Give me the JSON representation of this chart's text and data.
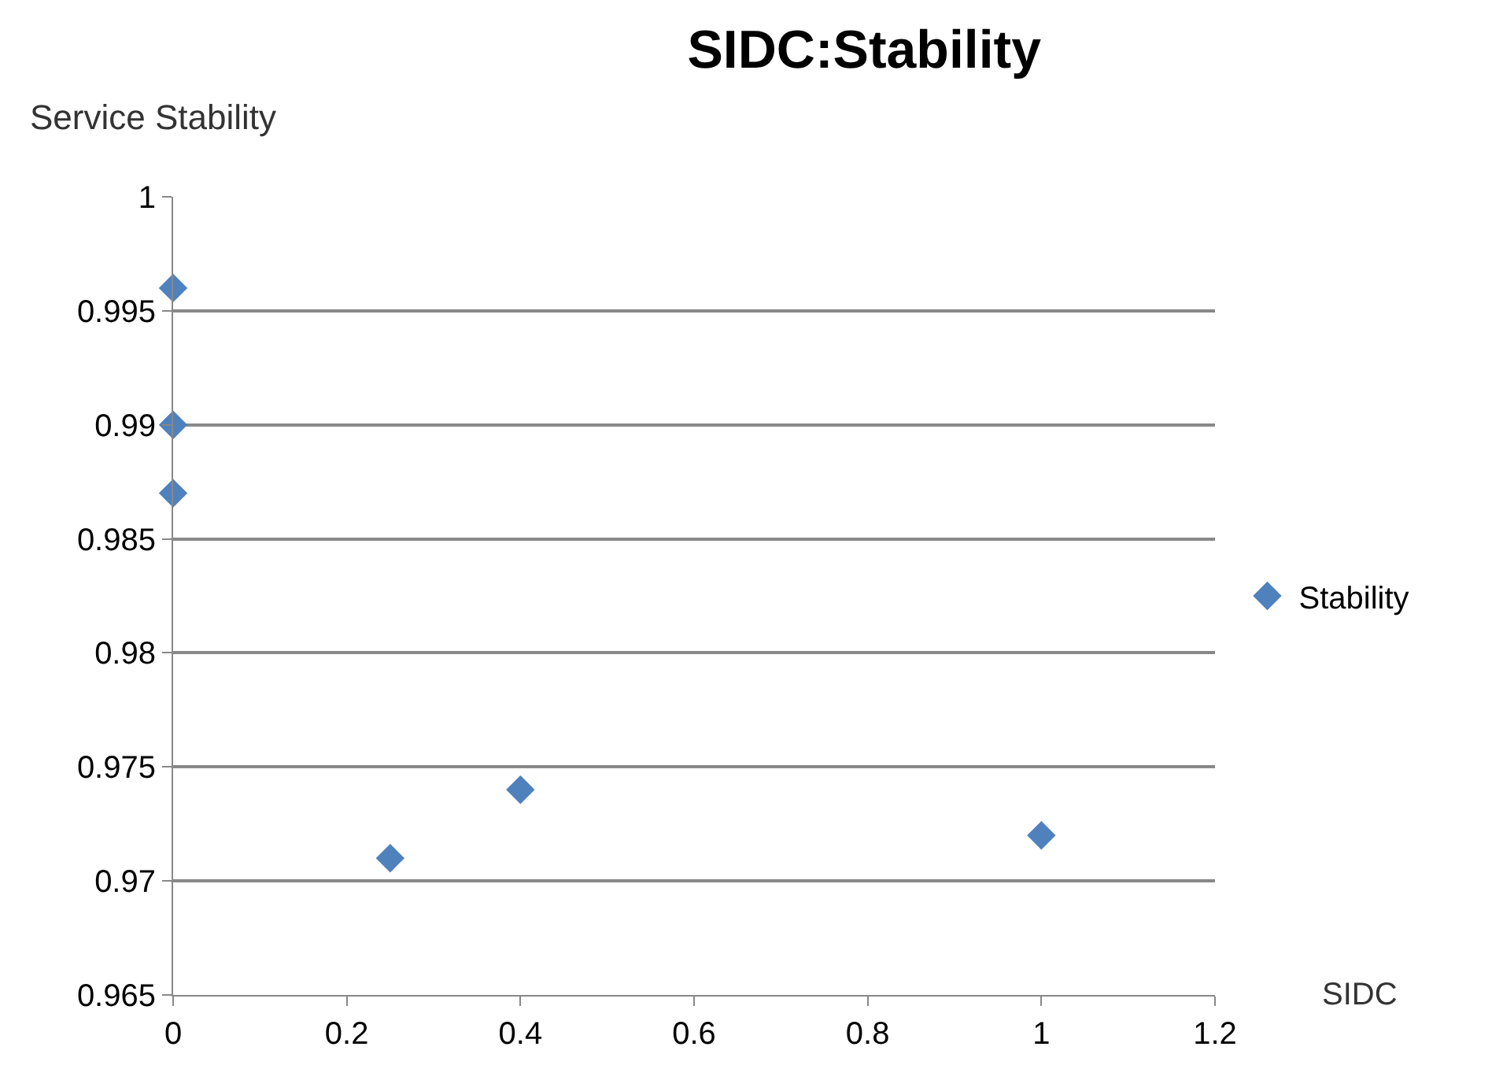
{
  "chart_data": {
    "type": "scatter",
    "title": "SIDC:Stability",
    "xlabel": "SIDC",
    "ylabel": "Service Stability",
    "x": [
      0,
      0,
      0,
      0.25,
      0.4,
      1
    ],
    "series": [
      {
        "name": "Stability",
        "color": "#4f81bd",
        "values": [
          0.996,
          0.99,
          0.987,
          0.971,
          0.974,
          0.972
        ]
      }
    ],
    "xlim": [
      0,
      1.2
    ],
    "xticks": [
      0,
      0.2,
      0.4,
      0.6,
      0.8,
      1,
      1.2
    ],
    "ylim": [
      0.965,
      1
    ],
    "yticks": [
      0.965,
      0.97,
      0.975,
      0.98,
      0.985,
      0.99,
      0.995,
      1
    ],
    "grid": "y",
    "legend": "right",
    "marker": "diamond"
  }
}
